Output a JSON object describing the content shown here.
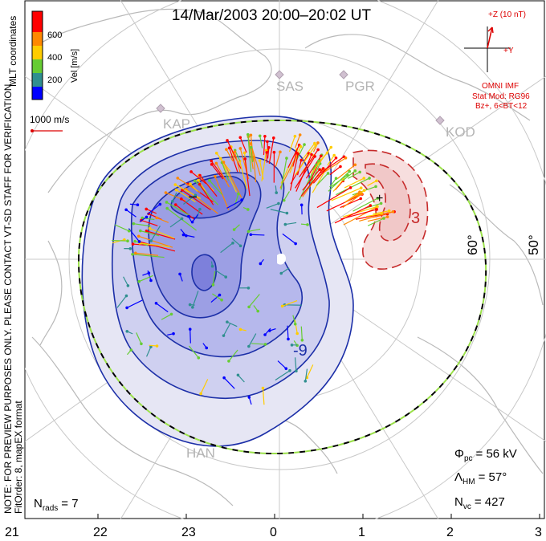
{
  "chart_data": {
    "type": "polar-convection-map",
    "title": "14/Mar/2003 20:00–20:02 UT",
    "coordinates_label": "MLT coordinates",
    "colorbar": {
      "label": "Vel [m/s]",
      "ticks": [
        "200",
        "400",
        "600"
      ],
      "colors": [
        "#0000ff",
        "#2f8f8f",
        "#66cc33",
        "#ffcc00",
        "#ff8800",
        "#ff0000"
      ]
    },
    "velocity_scale_label": "1000 m/s",
    "notes": [
      "NOTE: FOR PREVIEW PURPOSES ONLY. PLEASE CONTACT VT-SD STAFF FOR VERIFICATION.",
      "FitOrder: 8, mapEX format"
    ],
    "imf": {
      "bz_label": "+Z (10 nT)",
      "by_label": "+Y",
      "source": "OMNI IMF",
      "model_line1": "Stat Mod: RG96",
      "model_line2": "Bz+, 6<BT<12"
    },
    "stations": [
      "SAS",
      "PGR",
      "KAP",
      "KOD",
      "HAN"
    ],
    "lat_labels": [
      "60°",
      "50°"
    ],
    "mlt_ticks": [
      "21",
      "22",
      "23",
      "0",
      "1",
      "2",
      "3"
    ],
    "contour_labels": [
      "-9",
      "3"
    ],
    "potential_extrema": {
      "min_marker": "–",
      "max_marker": "+"
    },
    "stats": {
      "phi_pc_symbol": "Φ",
      "phi_pc_sub": "pc",
      "phi_pc_value": "= 56 kV",
      "lambda_hm_symbol": "Λ",
      "lambda_hm_sub": "HM",
      "lambda_hm_value": "= 57°",
      "n_vc_symbol": "N",
      "n_vc_sub": "vc",
      "n_vc_value": "= 427",
      "n_rads_symbol": "N",
      "n_rads_sub": "rads",
      "n_rads_value": "= 7"
    },
    "colors": {
      "negative_cell": "#3b3bd6",
      "positive_cell": "#d23a3a",
      "boundary_dash_1": "#9be14a",
      "boundary_dash_2": "#000000",
      "map_gray": "#b4b4b4"
    }
  }
}
